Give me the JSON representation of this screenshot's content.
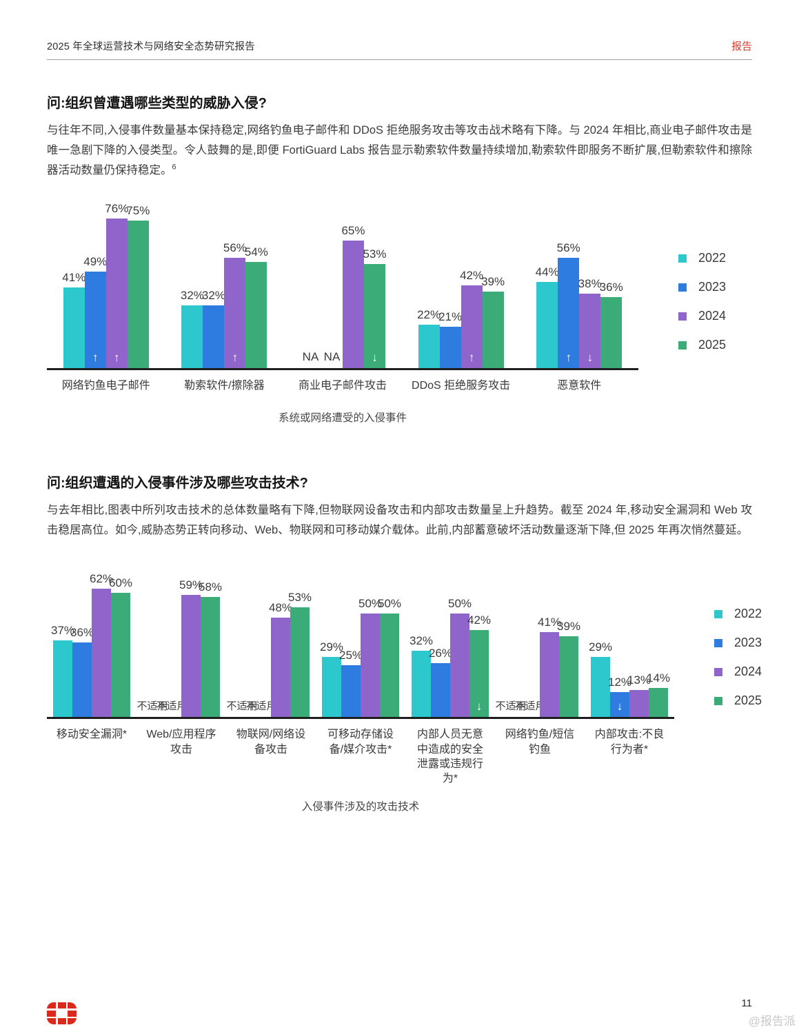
{
  "header": {
    "title": "2025 年全球运营技术与网络安全态势研究报告",
    "badge": "报告"
  },
  "section1": {
    "question": "问:组织曾遭遇哪些类型的威胁入侵?",
    "paragraph": "与往年不同,入侵事件数量基本保持稳定,网络钓鱼电子邮件和 DDoS 拒绝服务攻击等攻击战术略有下降。与 2024 年相比,商业电子邮件攻击是唯一急剧下降的入侵类型。令人鼓舞的是,即便 FortiGuard Labs 报告显示勒索软件数量持续增加,勒索软件即服务不断扩展,但勒索软件和擦除器活动数量仍保持稳定。",
    "footnote": "6"
  },
  "section2": {
    "question": "问:组织遭遇的入侵事件涉及哪些攻击技术?",
    "paragraph": "与去年相比,图表中所列攻击技术的总体数量略有下降,但物联网设备攻击和内部攻击数量呈上升趋势。截至 2024 年,移动安全漏洞和 Web 攻击稳居高位。如今,威胁态势正转向移动、Web、物联网和可移动媒介载体。此前,内部蓄意破坏活动数量逐渐下降,但 2025 年再次悄然蔓延。"
  },
  "legend": {
    "years": [
      "2022",
      "2023",
      "2024",
      "2025"
    ],
    "colors": {
      "2022": "#2cc8ce",
      "2023": "#2e7ce0",
      "2024": "#8f65cc",
      "2025": "#3bab77"
    }
  },
  "chart_data": [
    {
      "type": "bar",
      "title": "系统或网络遭受的入侵事件",
      "unit": "%",
      "ylim": [
        0,
        80
      ],
      "grid": false,
      "legend_position": "right",
      "na_text": "NA",
      "years": [
        "2022",
        "2023",
        "2024",
        "2025"
      ],
      "categories": [
        "网络钓鱼电子邮件",
        "勒索软件/擦除器",
        "商业电子邮件攻击",
        "DDoS 拒绝服务攻击",
        "恶意软件"
      ],
      "series": [
        {
          "name": "2022",
          "values": [
            41,
            32,
            null,
            22,
            44
          ]
        },
        {
          "name": "2023",
          "values": [
            49,
            32,
            null,
            21,
            56
          ]
        },
        {
          "name": "2024",
          "values": [
            76,
            56,
            65,
            42,
            38
          ]
        },
        {
          "name": "2025",
          "values": [
            75,
            54,
            53,
            39,
            36
          ]
        }
      ],
      "arrows": [
        [
          null,
          "up",
          "up",
          null
        ],
        [
          null,
          null,
          "up",
          null
        ],
        [
          null,
          null,
          null,
          "down"
        ],
        [
          null,
          null,
          "up",
          null
        ],
        [
          null,
          "up",
          "down",
          null
        ]
      ]
    },
    {
      "type": "bar",
      "title": "入侵事件涉及的攻击技术",
      "unit": "%",
      "ylim": [
        0,
        70
      ],
      "grid": false,
      "legend_position": "right",
      "na_text": "不适用",
      "years": [
        "2022",
        "2023",
        "2024",
        "2025"
      ],
      "categories": [
        "移动安全漏洞*",
        "Web/应用程序攻击",
        "物联网/网络设备攻击",
        "可移动存储设备/媒介攻击*",
        "内部人员无意中造成的安全泄露或违规行为*",
        "网络钓鱼/短信钓鱼",
        "内部攻击:不良行为者*"
      ],
      "series": [
        {
          "name": "2022",
          "values": [
            37,
            null,
            null,
            29,
            32,
            null,
            29
          ]
        },
        {
          "name": "2023",
          "values": [
            36,
            null,
            null,
            25,
            26,
            null,
            12
          ]
        },
        {
          "name": "2024",
          "values": [
            62,
            59,
            48,
            50,
            50,
            41,
            13
          ]
        },
        {
          "name": "2025",
          "values": [
            60,
            58,
            53,
            50,
            42,
            39,
            14
          ]
        }
      ],
      "arrows": [
        [
          null,
          null,
          null,
          null
        ],
        [
          null,
          null,
          null,
          null
        ],
        [
          null,
          null,
          null,
          null
        ],
        [
          null,
          null,
          null,
          null
        ],
        [
          null,
          null,
          null,
          "down"
        ],
        [
          null,
          null,
          null,
          null
        ],
        [
          null,
          "down",
          null,
          null
        ]
      ]
    }
  ],
  "footer": {
    "page_number": "11",
    "watermark": "@报告派"
  }
}
